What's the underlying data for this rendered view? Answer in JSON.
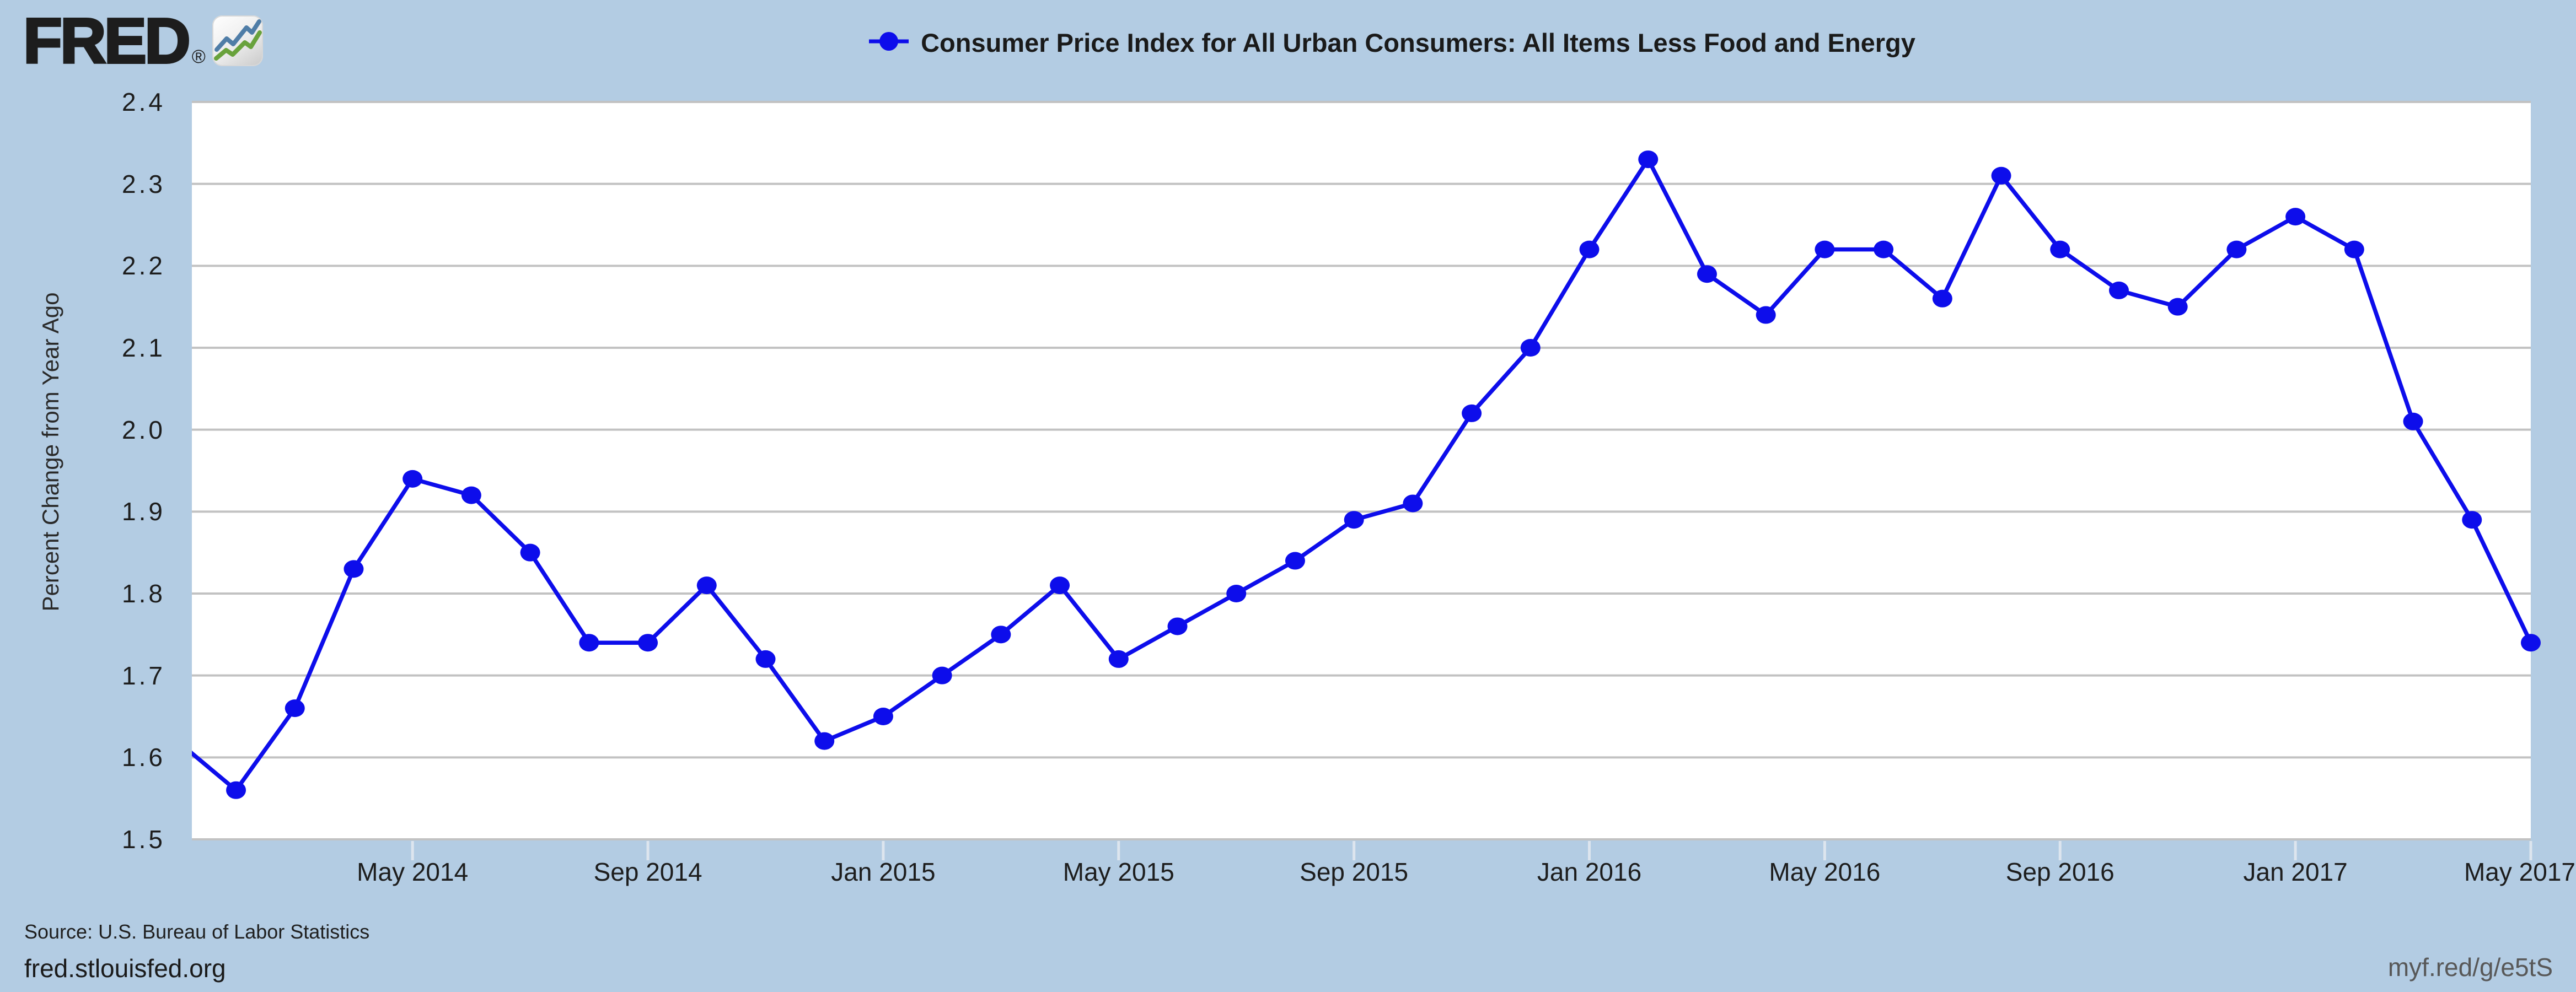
{
  "header": {
    "logo_text": "FRED",
    "registered_symbol": "®",
    "logo_icon": "fred-zigzag-chart-icon"
  },
  "chart_data": {
    "type": "line",
    "title": "Consumer Price Index for All Urban Consumers: All Items Less Food and Energy",
    "ylabel": "Percent Change from Year Ago",
    "ylim": [
      1.5,
      2.4
    ],
    "ytick_step": 0.1,
    "grid": "horizontal",
    "legend_position": "top-center",
    "series_color": "#0d0deb",
    "marker": "filled-circle",
    "x": [
      "Jan 2014",
      "Feb 2014",
      "Mar 2014",
      "Apr 2014",
      "May 2014",
      "Jun 2014",
      "Jul 2014",
      "Aug 2014",
      "Sep 2014",
      "Oct 2014",
      "Nov 2014",
      "Dec 2014",
      "Jan 2015",
      "Feb 2015",
      "Mar 2015",
      "Apr 2015",
      "May 2015",
      "Jun 2015",
      "Jul 2015",
      "Aug 2015",
      "Sep 2015",
      "Oct 2015",
      "Nov 2015",
      "Dec 2015",
      "Jan 2016",
      "Feb 2016",
      "Mar 2016",
      "Apr 2016",
      "May 2016",
      "Jun 2016",
      "Jul 2016",
      "Aug 2016",
      "Sep 2016",
      "Oct 2016",
      "Nov 2016",
      "Dec 2016",
      "Jan 2017",
      "Feb 2017",
      "Mar 2017",
      "Apr 2017",
      "May 2017"
    ],
    "values": [
      1.62,
      1.56,
      1.66,
      1.83,
      1.94,
      1.92,
      1.85,
      1.74,
      1.74,
      1.81,
      1.72,
      1.62,
      1.65,
      1.7,
      1.75,
      1.81,
      1.72,
      1.76,
      1.8,
      1.84,
      1.89,
      1.91,
      2.02,
      2.1,
      2.22,
      2.33,
      2.19,
      2.14,
      2.22,
      2.22,
      2.16,
      2.31,
      2.22,
      2.17,
      2.15,
      2.22,
      2.26,
      2.22,
      2.01,
      1.89,
      1.74
    ],
    "xtick_labels": [
      "May 2014",
      "Sep 2014",
      "Jan 2015",
      "May 2015",
      "Sep 2015",
      "Jan 2016",
      "May 2016",
      "Sep 2016",
      "Jan 2017",
      "May 2017"
    ],
    "xtick_indices": [
      4,
      8,
      12,
      16,
      20,
      24,
      28,
      32,
      36,
      40
    ]
  },
  "footer": {
    "source": "Source: U.S. Bureau of Labor Statistics",
    "site_url": "fred.stlouisfed.org",
    "short_url": "myf.red/g/e5tS"
  },
  "colors": {
    "background": "#b3cce3",
    "plot_background": "#ffffff",
    "gridline": "#c2c2c2",
    "axis_tick": "#dde5ee",
    "series": "#0d0deb",
    "text": "#1d1d1d",
    "muted_text": "#585858",
    "logo_icon_blue": "#4f7da7",
    "logo_icon_green": "#69a23c"
  }
}
